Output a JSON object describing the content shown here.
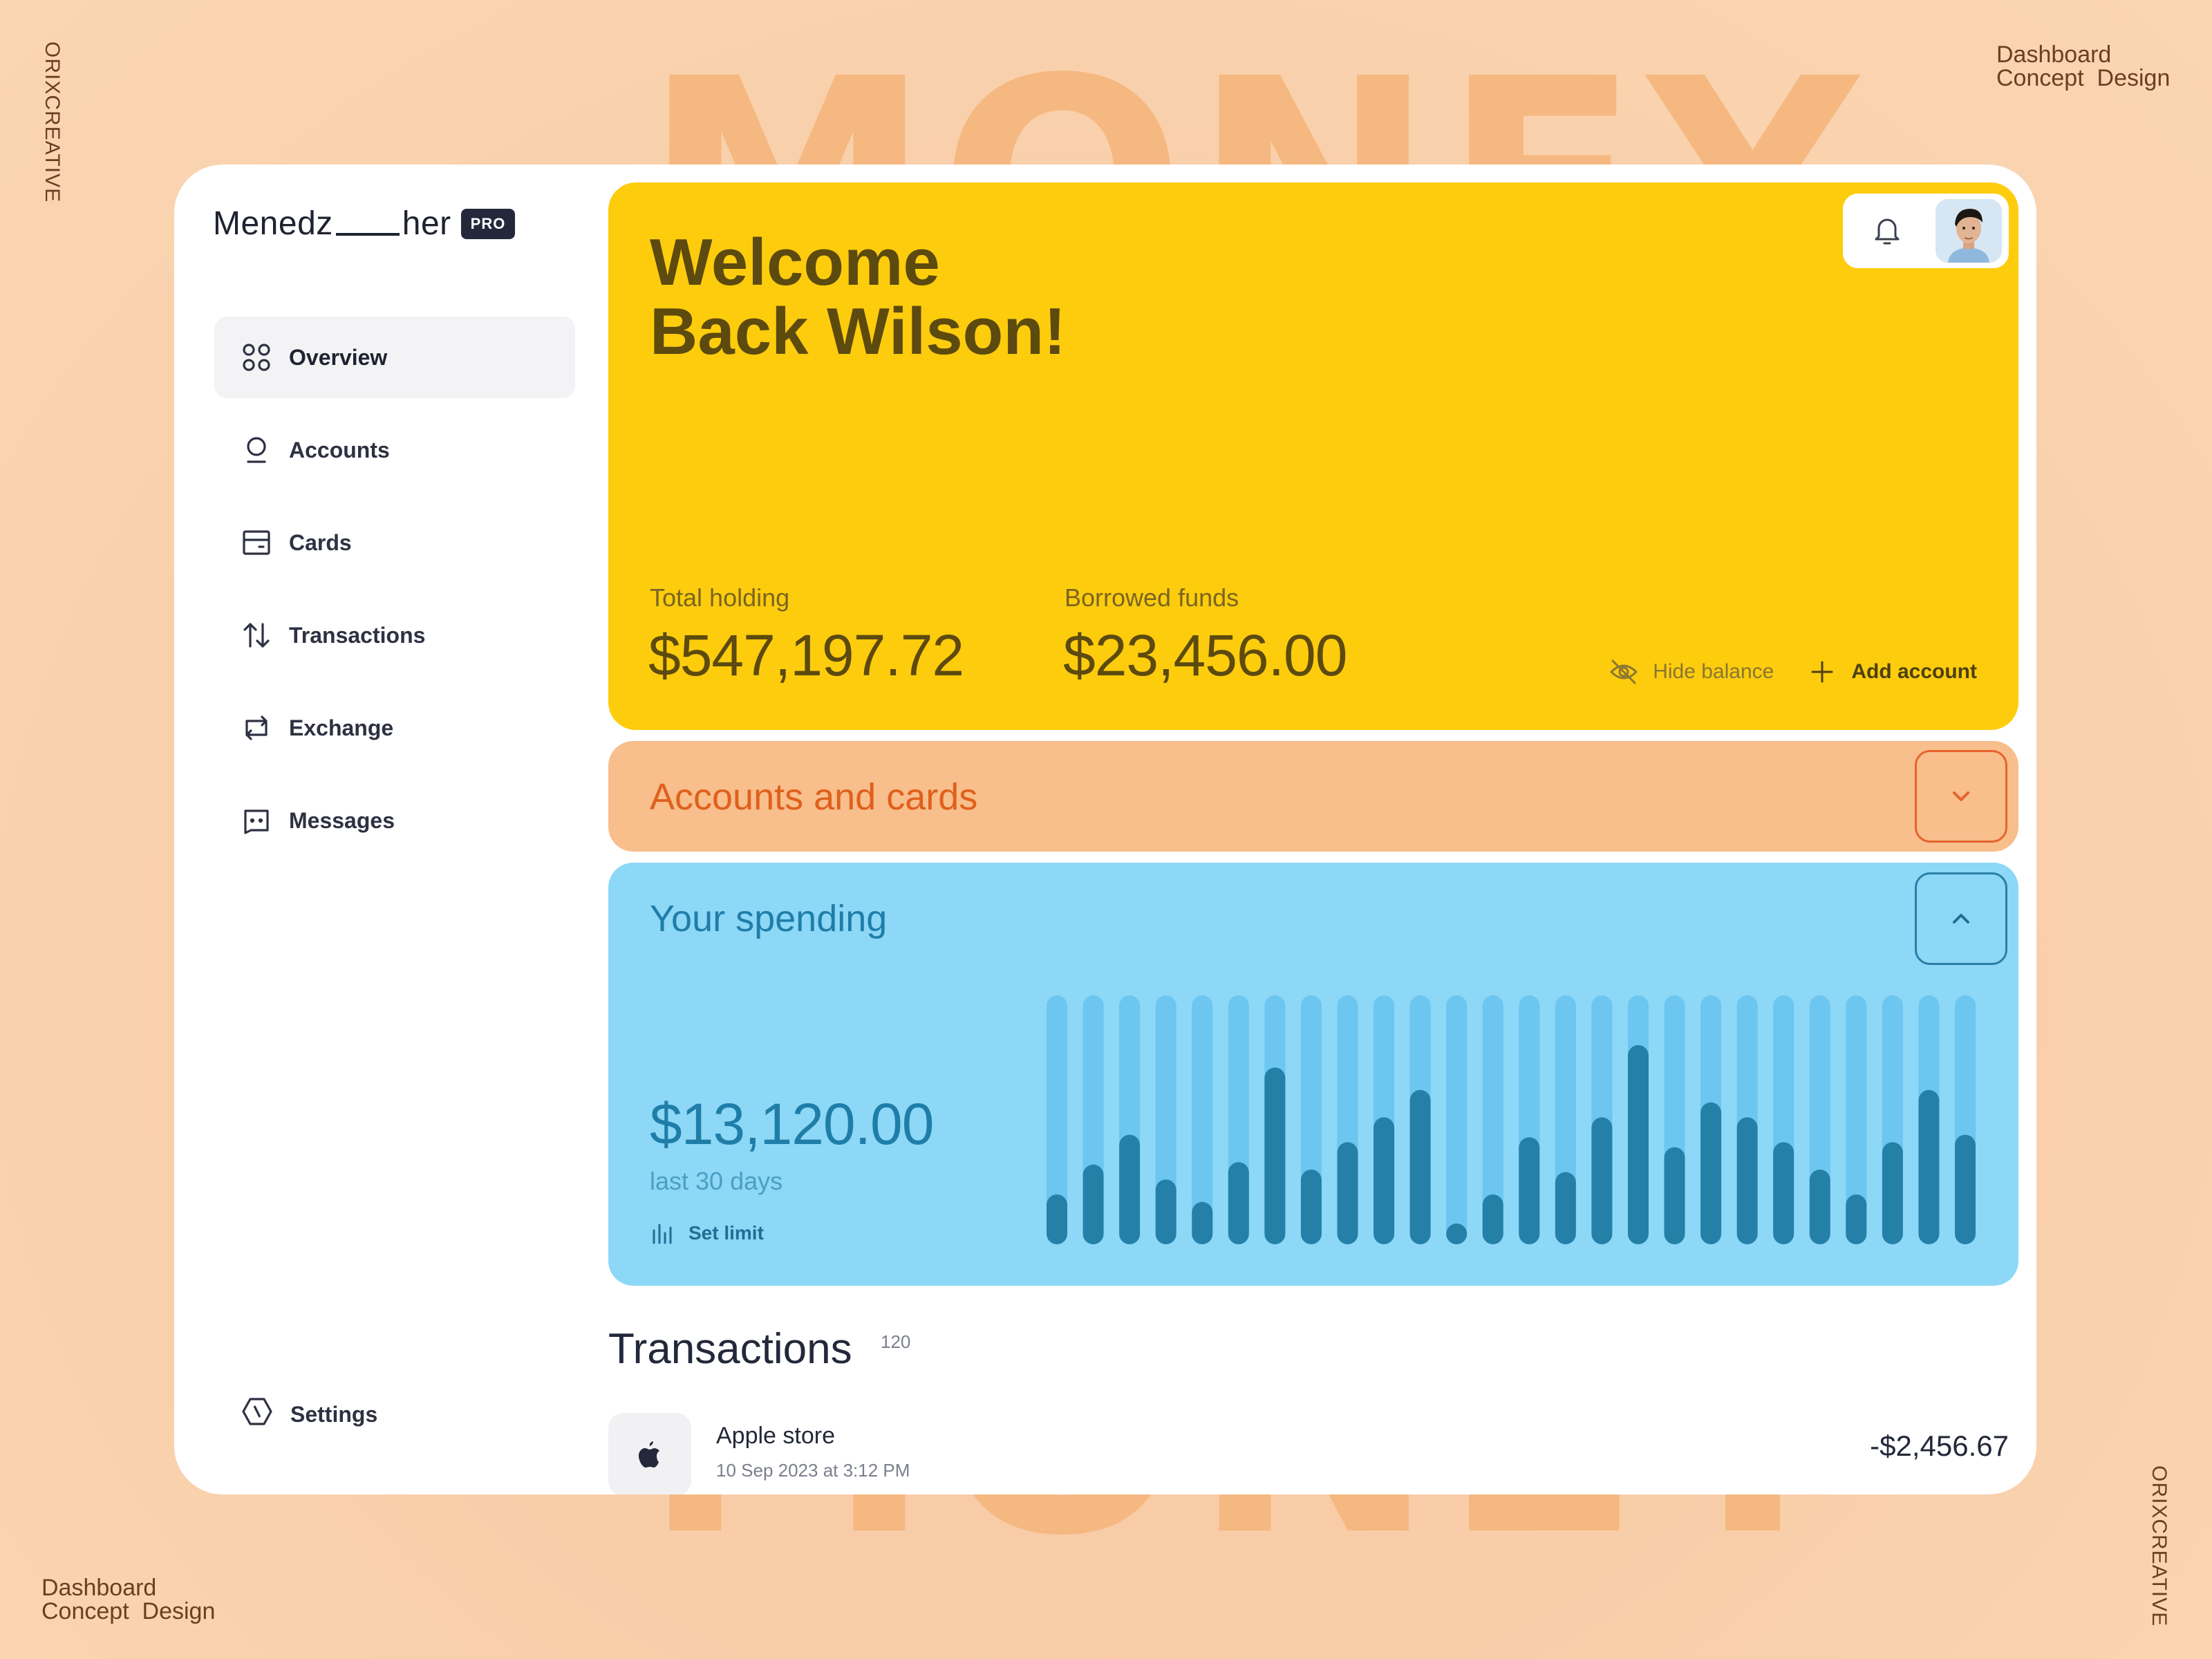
{
  "background": {
    "word": "MONEY",
    "brand": "ORIXCREATIVE",
    "concept_line1": "Dashboard",
    "concept_line2": "Concept  Design"
  },
  "colors": {
    "page_bg": "#f8cda8",
    "welcome_bg": "#fdcc0d",
    "accounts_bg": "#f8be8c",
    "accounts_accent": "#e0601b",
    "spending_bg": "#8dd7f7",
    "spending_accent": "#1f7ea8",
    "bar_track": "#6cc6ef",
    "bar_fill": "#2580a8"
  },
  "sidebar": {
    "logo_left": "Menedz",
    "logo_right": "her",
    "badge": "PRO",
    "items": [
      {
        "label": "Overview",
        "icon": "grid-icon",
        "active": true
      },
      {
        "label": "Accounts",
        "icon": "user-icon",
        "active": false
      },
      {
        "label": "Cards",
        "icon": "card-icon",
        "active": false
      },
      {
        "label": "Transactions",
        "icon": "arrows-updown-icon",
        "active": false
      },
      {
        "label": "Exchange",
        "icon": "exchange-icon",
        "active": false
      },
      {
        "label": "Messages",
        "icon": "message-icon",
        "active": false
      }
    ],
    "settings_label": "Settings"
  },
  "welcome": {
    "line1": "Welcome",
    "line2": "Back Wilson!",
    "total_label": "Total holding",
    "total_value": "$547,197.72",
    "borrowed_label": "Borrowed funds",
    "borrowed_value": "$23,456.00",
    "hide_balance": "Hide balance",
    "add_account": "Add account"
  },
  "accounts_panel": {
    "title": "Accounts and cards"
  },
  "spending": {
    "title": "Your spending",
    "amount": "$13,120.00",
    "period": "last 30 days",
    "set_limit": "Set limit"
  },
  "chart_data": {
    "type": "bar",
    "title": "",
    "values": [
      0.2,
      0.32,
      0.44,
      0.26,
      0.17,
      0.33,
      0.71,
      0.3,
      0.41,
      0.51,
      0.62,
      0.06,
      0.2,
      0.43,
      0.29,
      0.51,
      0.8,
      0.39,
      0.57,
      0.51,
      0.41,
      0.3,
      0.2,
      0.41,
      0.62,
      0.44
    ],
    "ylim": [
      0,
      1
    ]
  },
  "transactions": {
    "title": "Transactions",
    "count": "120",
    "items": [
      {
        "name": "Apple store",
        "date": "10 Sep 2023 at 3:12 PM",
        "amount": "-$2,456.67",
        "icon": "apple-icon"
      }
    ]
  }
}
